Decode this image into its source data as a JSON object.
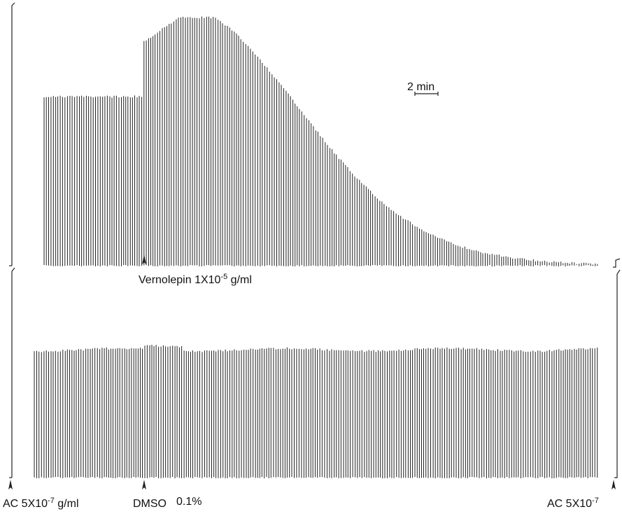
{
  "scale_bar": {
    "label": "2 min"
  },
  "top_trace": {
    "label": {
      "prefix": "Vernolepin 1X10",
      "exp": "-5",
      "suffix": " g/ml"
    }
  },
  "bottom_trace": {
    "start_label": {
      "prefix": "AC 5X10",
      "exp": "-7",
      "suffix": " g/ml"
    },
    "vehicle_label": "DMSO",
    "vehicle_conc": "0.1%",
    "end_label": {
      "prefix": "AC 5X10",
      "exp": "-7"
    }
  }
}
